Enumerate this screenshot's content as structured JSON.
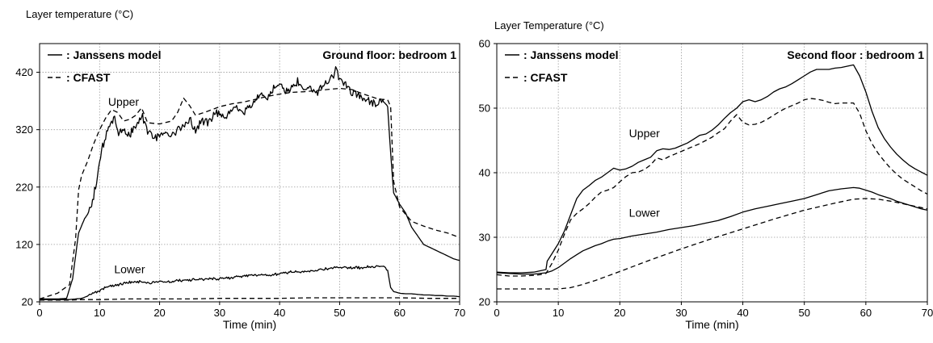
{
  "chart_data": [
    {
      "type": "line",
      "ylabel": "Layer temperature (°C)",
      "xlabel": "Time (min)",
      "title": "Ground floor: bedroom 1",
      "xlim": [
        0,
        70
      ],
      "ylim": [
        20,
        470
      ],
      "xticks": [
        "0",
        "10",
        "20",
        "30",
        "40",
        "50",
        "60",
        "70"
      ],
      "yticks": [
        "20",
        "120",
        "220",
        "320",
        "420"
      ],
      "grid": true,
      "legend": {
        "position": "top-left",
        "entries": [
          {
            "label": ": Janssens model",
            "style": "solid"
          },
          {
            "label": ": CFAST",
            "style": "dashed"
          }
        ]
      },
      "annotations": [
        {
          "text": "Upper",
          "x": 14,
          "y": 362
        },
        {
          "text": "Lower",
          "x": 15,
          "y": 70
        }
      ],
      "series": [
        {
          "name": "Janssens model - Upper",
          "style": "solid",
          "noise": 9,
          "x": [
            0,
            3,
            4.5,
            5.5,
            6.5,
            7.5,
            8.5,
            9.5,
            10.5,
            11.5,
            12.5,
            13,
            14,
            15,
            16,
            17,
            18,
            19,
            20,
            21,
            22,
            23,
            24,
            25,
            26,
            27,
            28,
            29,
            30,
            31,
            32,
            33,
            34,
            35,
            36,
            37,
            38,
            39,
            40,
            41,
            42,
            43,
            44,
            45,
            46,
            47,
            48,
            49,
            49.5,
            50,
            51,
            52,
            53,
            54,
            55,
            56,
            57,
            58,
            58.5,
            59,
            60,
            61,
            62,
            63,
            64,
            65,
            66,
            67,
            68,
            69,
            70
          ],
          "y": [
            25,
            25,
            26,
            60,
            140,
            165,
            180,
            230,
            290,
            325,
            345,
            315,
            318,
            310,
            325,
            345,
            320,
            305,
            310,
            315,
            310,
            322,
            330,
            340,
            318,
            338,
            330,
            345,
            350,
            340,
            352,
            358,
            350,
            362,
            372,
            380,
            376,
            392,
            398,
            385,
            395,
            402,
            390,
            398,
            385,
            395,
            405,
            415,
            432,
            405,
            398,
            385,
            380,
            375,
            370,
            365,
            372,
            360,
            280,
            210,
            190,
            175,
            150,
            135,
            120,
            115,
            110,
            105,
            100,
            95,
            92
          ]
        },
        {
          "name": "CFAST - Upper",
          "style": "dashed",
          "x": [
            0,
            3,
            5,
            6,
            6.5,
            7,
            8,
            9,
            10,
            11,
            12,
            13,
            14,
            15,
            16,
            17,
            18,
            20,
            22,
            23,
            24,
            25,
            26,
            28,
            30,
            32,
            34,
            36,
            38,
            40,
            42,
            44,
            46,
            48,
            50,
            52,
            54,
            56,
            57,
            58,
            58.5,
            59,
            60,
            62,
            64,
            66,
            68,
            70
          ],
          "y": [
            25,
            35,
            50,
            130,
            215,
            240,
            265,
            295,
            320,
            340,
            355,
            350,
            335,
            338,
            345,
            358,
            332,
            330,
            335,
            350,
            375,
            362,
            345,
            352,
            360,
            365,
            368,
            373,
            378,
            382,
            385,
            386,
            388,
            390,
            392,
            390,
            382,
            375,
            373,
            372,
            360,
            230,
            185,
            160,
            152,
            145,
            140,
            132
          ]
        },
        {
          "name": "Janssens model - Lower",
          "style": "solid",
          "noise": 3,
          "x": [
            0,
            3,
            5,
            6,
            7,
            8,
            9,
            10,
            11,
            12,
            13,
            14,
            15,
            16,
            17,
            18,
            19,
            20,
            22,
            24,
            26,
            28,
            30,
            32,
            34,
            36,
            38,
            40,
            42,
            44,
            46,
            48,
            50,
            52,
            54,
            56,
            57,
            57.5,
            58,
            58.5,
            59,
            60,
            61,
            62,
            63,
            64,
            65,
            66,
            67,
            68,
            69,
            70
          ],
          "y": [
            24,
            24,
            24,
            25,
            26,
            30,
            35,
            40,
            45,
            48,
            50,
            52,
            54,
            54,
            55,
            53,
            54,
            54,
            56,
            58,
            58,
            60,
            61,
            62,
            64,
            67,
            66,
            70,
            72,
            72,
            75,
            78,
            80,
            79,
            80,
            82,
            82,
            81,
            75,
            45,
            38,
            35,
            34,
            34,
            33,
            32,
            32,
            31,
            31,
            30,
            30,
            29
          ]
        },
        {
          "name": "CFAST - Lower",
          "style": "dashed",
          "x": [
            0,
            5,
            7,
            10,
            15,
            20,
            25,
            30,
            35,
            40,
            45,
            50,
            55,
            58,
            59,
            60,
            65,
            70
          ],
          "y": [
            23,
            23,
            24,
            24,
            25,
            25,
            25,
            26,
            26,
            26,
            27,
            27,
            27,
            27,
            27,
            27,
            26,
            26
          ]
        }
      ]
    },
    {
      "type": "line",
      "ylabel": "Layer Temperature (°C)",
      "xlabel": "Time (min)",
      "title": "Second floor : bedroom 1",
      "xlim": [
        0,
        70
      ],
      "ylim": [
        20,
        60
      ],
      "xticks": [
        "0",
        "10",
        "20",
        "30",
        "40",
        "50",
        "60",
        "70"
      ],
      "yticks": [
        "20",
        "30",
        "40",
        "50",
        "60"
      ],
      "grid": true,
      "legend": {
        "position": "top-left",
        "entries": [
          {
            "label": ": Janssens model",
            "style": "solid"
          },
          {
            "label": ": CFAST",
            "style": "dashed"
          }
        ]
      },
      "annotations": [
        {
          "text": "Upper",
          "x": 24,
          "y": 45.5
        },
        {
          "text": "Lower",
          "x": 24,
          "y": 33.2
        }
      ],
      "series": [
        {
          "name": "Janssens model - Upper",
          "style": "solid",
          "x": [
            0,
            2,
            4,
            6,
            7,
            8,
            8.2,
            9,
            10,
            11,
            12,
            13,
            14,
            15,
            16,
            17,
            18,
            19,
            20,
            21,
            22,
            23,
            24,
            25,
            26,
            27,
            28,
            29,
            30,
            31,
            32,
            33,
            34,
            35,
            36,
            37,
            38,
            39,
            40,
            41,
            42,
            43,
            44,
            45,
            46,
            47,
            48,
            49,
            50,
            51,
            52,
            53,
            54,
            55,
            56,
            57,
            58,
            59,
            60,
            61,
            62,
            63,
            64,
            65,
            66,
            67,
            68,
            69,
            70
          ],
          "y": [
            24.6,
            24.5,
            24.5,
            24.6,
            24.8,
            25.0,
            26.3,
            27.5,
            29.0,
            31.0,
            33.5,
            36.0,
            37.3,
            38.0,
            38.8,
            39.3,
            40.0,
            40.7,
            40.4,
            40.6,
            41.0,
            41.6,
            42.0,
            42.4,
            43.4,
            43.7,
            43.6,
            43.8,
            44.2,
            44.6,
            45.2,
            45.8,
            46.0,
            46.6,
            47.4,
            48.4,
            49.3,
            50.0,
            51.0,
            51.3,
            51.0,
            51.3,
            51.8,
            52.5,
            53.0,
            53.3,
            53.8,
            54.4,
            55.0,
            55.6,
            56.0,
            56.0,
            56.0,
            56.2,
            56.3,
            56.5,
            56.7,
            55.0,
            52.5,
            49.5,
            47.0,
            45.3,
            44.0,
            42.9,
            42.0,
            41.2,
            40.6,
            40.1,
            39.6
          ]
        },
        {
          "name": "CFAST - Upper",
          "style": "dashed",
          "x": [
            0,
            2,
            4,
            6,
            7,
            8,
            9,
            10,
            11,
            12,
            13,
            14,
            15,
            16,
            17,
            18,
            19,
            20,
            21,
            22,
            23,
            24,
            25,
            26,
            27,
            28,
            29,
            30,
            31,
            32,
            33,
            34,
            35,
            36,
            37,
            38,
            39,
            40,
            41,
            42,
            43,
            44,
            45,
            46,
            47,
            48,
            49,
            50,
            51,
            52,
            53,
            54,
            55,
            56,
            57,
            58,
            59,
            60,
            61,
            62,
            63,
            64,
            65,
            66,
            67,
            68,
            69,
            70
          ],
          "y": [
            24.2,
            24.0,
            24.0,
            24.1,
            24.2,
            24.4,
            26.0,
            28.0,
            30.5,
            32.7,
            33.7,
            34.4,
            35.2,
            36.2,
            37.0,
            37.3,
            37.7,
            38.6,
            39.4,
            40.0,
            40.1,
            40.5,
            41.2,
            42.3,
            42.0,
            42.5,
            42.9,
            43.3,
            43.7,
            44.1,
            44.5,
            45.0,
            45.5,
            46.2,
            46.8,
            48.0,
            49.0,
            47.8,
            47.4,
            47.5,
            47.8,
            48.3,
            48.9,
            49.5,
            50.0,
            50.4,
            50.8,
            51.3,
            51.5,
            51.4,
            51.2,
            50.9,
            50.7,
            50.8,
            50.8,
            50.8,
            49.2,
            46.5,
            44.5,
            43.0,
            41.8,
            40.7,
            39.8,
            39.0,
            38.4,
            37.8,
            37.2,
            36.7
          ]
        },
        {
          "name": "Janssens model - Lower",
          "style": "solid",
          "x": [
            0,
            2,
            4,
            6,
            8,
            9,
            10,
            11,
            12,
            13,
            14,
            15,
            16,
            17,
            18,
            19,
            20,
            22,
            24,
            26,
            28,
            30,
            32,
            34,
            36,
            38,
            40,
            42,
            44,
            46,
            48,
            50,
            52,
            54,
            56,
            58,
            59,
            60,
            61,
            62,
            63,
            64,
            65,
            66,
            67,
            68,
            69,
            70
          ],
          "y": [
            24.5,
            24.4,
            24.3,
            24.3,
            24.5,
            24.8,
            25.3,
            26.0,
            26.7,
            27.3,
            27.9,
            28.3,
            28.7,
            29.0,
            29.4,
            29.7,
            29.8,
            30.2,
            30.5,
            30.8,
            31.2,
            31.5,
            31.8,
            32.2,
            32.6,
            33.2,
            33.9,
            34.4,
            34.8,
            35.2,
            35.6,
            36.0,
            36.6,
            37.2,
            37.5,
            37.7,
            37.6,
            37.3,
            37.0,
            36.6,
            36.3,
            36.0,
            35.6,
            35.3,
            35.0,
            34.7,
            34.4,
            34.2
          ]
        },
        {
          "name": "CFAST - Lower",
          "style": "dashed",
          "x": [
            0,
            5,
            8,
            10,
            12,
            14,
            16,
            18,
            20,
            25,
            30,
            35,
            40,
            45,
            50,
            55,
            58,
            60,
            62,
            64,
            66,
            68,
            70
          ],
          "y": [
            22.0,
            22.0,
            22.0,
            22.0,
            22.2,
            22.7,
            23.3,
            24.0,
            24.7,
            26.5,
            28.2,
            29.8,
            31.3,
            32.8,
            34.2,
            35.3,
            35.9,
            36.0,
            35.9,
            35.6,
            35.2,
            34.8,
            34.4
          ]
        }
      ]
    }
  ]
}
